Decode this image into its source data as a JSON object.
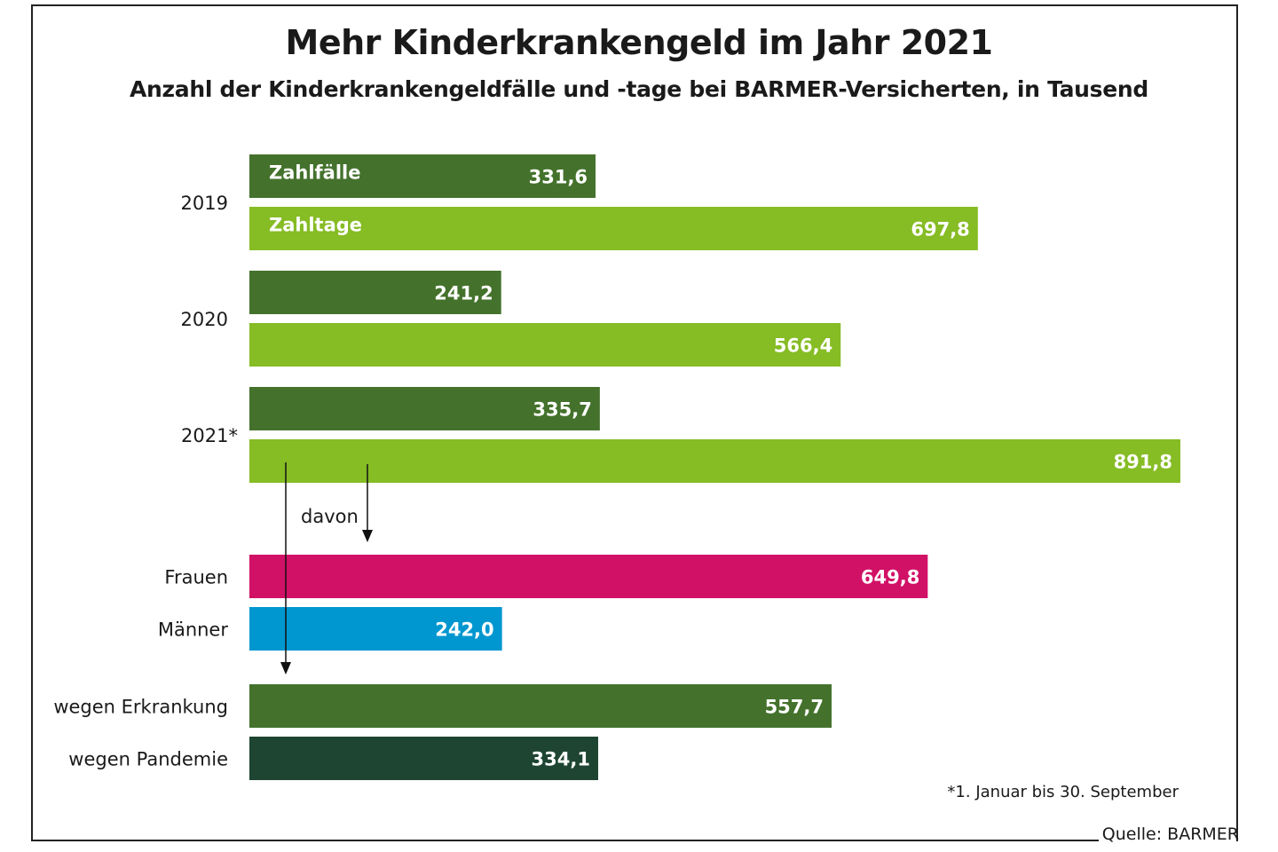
{
  "title": "Mehr Kinderkrankengeld im Jahr 2021",
  "subtitle": "Anzahl der Kinderkrankengeldfälle und -tage bei BARMER-Versicherten, in Tausend",
  "footnote": "*1. Januar bis 30. September",
  "source": "Quelle: BARMER",
  "colors": {
    "zahlfaelle": "#44722c",
    "zahltage": "#86bc24",
    "frauen": "#d11166",
    "maenner": "#0097d0",
    "erkrankung": "#44722c",
    "pandemie": "#1e4532"
  },
  "chart_data": {
    "type": "bar",
    "orientation": "horizontal",
    "title": "Mehr Kinderkrankengeld im Jahr 2021",
    "subtitle": "Anzahl der Kinderkrankengeldfälle und -tage bei BARMER-Versicherten, in Tausend",
    "xlim": [
      0,
      891.8
    ],
    "grid": false,
    "annotation": "davon",
    "groups": [
      {
        "label": "2019",
        "bars": [
          {
            "series": "Zahlfälle",
            "value": 331.6,
            "display": "331,6",
            "color_key": "zahlfaelle"
          },
          {
            "series": "Zahltage",
            "value": 697.8,
            "display": "697,8",
            "color_key": "zahltage"
          }
        ]
      },
      {
        "label": "2020",
        "bars": [
          {
            "series": "Zahlfälle",
            "value": 241.2,
            "display": "241,2",
            "color_key": "zahlfaelle"
          },
          {
            "series": "Zahltage",
            "value": 566.4,
            "display": "566,4",
            "color_key": "zahltage"
          }
        ]
      },
      {
        "label": "2021*",
        "bars": [
          {
            "series": "Zahlfälle",
            "value": 335.7,
            "display": "335,7",
            "color_key": "zahlfaelle"
          },
          {
            "series": "Zahltage",
            "value": 891.8,
            "display": "891,8",
            "color_key": "zahltage"
          }
        ]
      },
      {
        "label": "Frauen",
        "bars": [
          {
            "value": 649.8,
            "display": "649,8",
            "color_key": "frauen"
          }
        ]
      },
      {
        "label": "Männer",
        "bars": [
          {
            "value": 242.0,
            "display": "242,0",
            "color_key": "maenner"
          }
        ]
      },
      {
        "label": "wegen Erkrankung",
        "bars": [
          {
            "value": 557.7,
            "display": "557,7",
            "color_key": "erkrankung"
          }
        ]
      },
      {
        "label": "wegen Pandemie",
        "bars": [
          {
            "value": 334.1,
            "display": "334,1",
            "color_key": "pandemie"
          }
        ]
      }
    ],
    "series_labels_shown_on_first_group": [
      "Zahlfälle",
      "Zahltage"
    ]
  }
}
